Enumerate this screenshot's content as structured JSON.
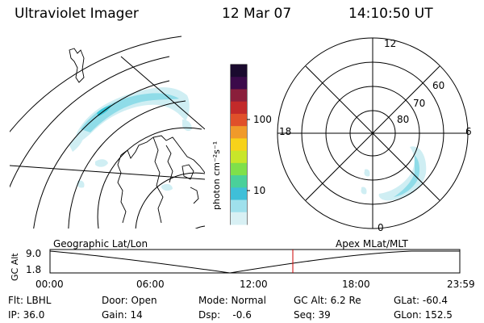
{
  "header": {
    "title": "Ultraviolet Imager",
    "date": "12 Mar 07",
    "time": "14:10:50 UT"
  },
  "colorbar": {
    "ticks": [
      "100",
      "10"
    ],
    "unit_label": "photon cm⁻²s⁻¹",
    "colors": [
      "#1a0a2e",
      "#3b0a4a",
      "#8a1f3b",
      "#c22a2a",
      "#e0502a",
      "#f09a2a",
      "#f7d21a",
      "#c8e62a",
      "#7fe04a",
      "#4ad09a",
      "#3fbfd8",
      "#9fe0ec",
      "#d8f0f4"
    ]
  },
  "polar": {
    "lat_labels": [
      "60",
      "70",
      "80"
    ],
    "mlt_labels": {
      "top": "12",
      "right": "6",
      "bottom": "0",
      "left": "18"
    }
  },
  "timeline": {
    "left_label": "Geographic Lat/Lon",
    "right_label": "Apex MLat/MLT",
    "y_label": "GC Alt",
    "y_ticks": [
      "9.0",
      "1.8"
    ],
    "x_ticks": [
      "00:00",
      "06:00",
      "12:00",
      "18:00",
      "23:59"
    ],
    "current_marker_time": "14:10:50"
  },
  "status": {
    "row1": {
      "filter": "Flt: LBHL",
      "door": "Door: Open",
      "mode": "Mode: Normal",
      "gc_alt": "GC Alt: 6.2 Re",
      "glat": "GLat: -60.4"
    },
    "row2": {
      "ip": "IP: 36.0",
      "gain": "Gain: 14",
      "dsp": "Dsp:    -0.6",
      "seq": "Seq: 39",
      "glon": "GLon: 152.5"
    }
  },
  "colors": {
    "aurora_light": "#cfeef3",
    "aurora_mid": "#8fdce8",
    "aurora_bright": "#38c6d8",
    "marker": "#cc0000"
  }
}
